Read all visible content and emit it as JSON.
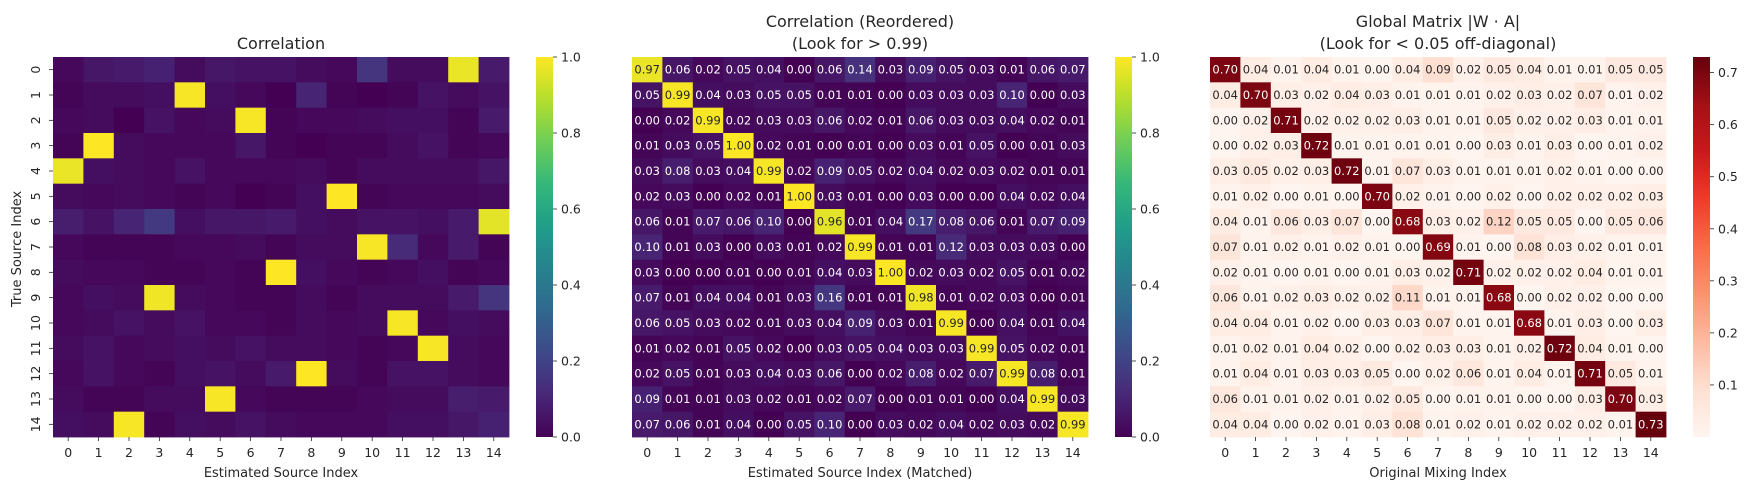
{
  "colors": {
    "viridis": [
      "#440154",
      "#482878",
      "#3e4989",
      "#31688e",
      "#26828e",
      "#1f9e89",
      "#35b779",
      "#6ece58",
      "#b5de2b",
      "#fde725"
    ],
    "reds": [
      "#fff5f0",
      "#fee0d2",
      "#fcbba1",
      "#fc9272",
      "#fb6a4a",
      "#ef3b2c",
      "#cb181d",
      "#a50f15",
      "#67000d"
    ]
  },
  "chart_data": [
    {
      "type": "heatmap",
      "title": "Correlation",
      "subtitle": "",
      "xlabel": "Estimated Source Index",
      "ylabel": "True Source Index",
      "x_ticks": [
        "0",
        "1",
        "2",
        "3",
        "4",
        "5",
        "6",
        "7",
        "8",
        "9",
        "10",
        "11",
        "12",
        "13",
        "14"
      ],
      "y_ticks": [
        "0",
        "1",
        "2",
        "3",
        "4",
        "5",
        "6",
        "7",
        "8",
        "9",
        "10",
        "11",
        "12",
        "13",
        "14"
      ],
      "colormap": "viridis",
      "vmin": 0,
      "vmax": 1,
      "colorbar_ticks": [
        "0.0",
        "0.2",
        "0.4",
        "0.6",
        "0.8",
        "1.0"
      ],
      "colorbar_tick_values": [
        0,
        0.2,
        0.4,
        0.6,
        0.8,
        1.0
      ],
      "show_values": false,
      "values": [
        [
          0.02,
          0.06,
          0.07,
          0.09,
          0.03,
          0.06,
          0.05,
          0.05,
          0.03,
          0.02,
          0.15,
          0.03,
          0.03,
          0.97,
          0.07
        ],
        [
          0.01,
          0.03,
          0.03,
          0.04,
          0.99,
          0.04,
          0.02,
          0.0,
          0.1,
          0.01,
          0.0,
          0.01,
          0.05,
          0.03,
          0.05
        ],
        [
          0.02,
          0.03,
          0.0,
          0.05,
          0.02,
          0.03,
          0.99,
          0.01,
          0.02,
          0.02,
          0.03,
          0.04,
          0.04,
          0.01,
          0.07
        ],
        [
          0.01,
          1.0,
          0.03,
          0.02,
          0.02,
          0.02,
          0.06,
          0.01,
          0.0,
          0.01,
          0.01,
          0.03,
          0.05,
          0.01,
          0.02
        ],
        [
          0.97,
          0.04,
          0.03,
          0.02,
          0.05,
          0.02,
          0.02,
          0.02,
          0.03,
          0.01,
          0.03,
          0.03,
          0.03,
          0.03,
          0.06
        ],
        [
          0.03,
          0.02,
          0.03,
          0.02,
          0.01,
          0.02,
          0.0,
          0.01,
          0.04,
          1.0,
          0.01,
          0.02,
          0.02,
          0.02,
          0.03
        ],
        [
          0.08,
          0.05,
          0.1,
          0.17,
          0.04,
          0.06,
          0.06,
          0.07,
          0.04,
          0.03,
          0.05,
          0.05,
          0.04,
          0.07,
          0.96
        ],
        [
          0.02,
          0.01,
          0.01,
          0.01,
          0.02,
          0.02,
          0.03,
          0.01,
          0.03,
          0.03,
          0.99,
          0.12,
          0.02,
          0.07,
          0.01
        ],
        [
          0.03,
          0.02,
          0.02,
          0.01,
          0.01,
          0.02,
          0.01,
          1.0,
          0.04,
          0.02,
          0.01,
          0.02,
          0.04,
          0.01,
          0.02
        ],
        [
          0.02,
          0.04,
          0.03,
          0.98,
          0.03,
          0.02,
          0.01,
          0.01,
          0.03,
          0.01,
          0.03,
          0.03,
          0.03,
          0.07,
          0.15
        ],
        [
          0.02,
          0.03,
          0.05,
          0.03,
          0.05,
          0.02,
          0.02,
          0.01,
          0.03,
          0.02,
          0.03,
          0.99,
          0.02,
          0.04,
          0.03
        ],
        [
          0.03,
          0.05,
          0.02,
          0.03,
          0.04,
          0.03,
          0.05,
          0.03,
          0.03,
          0.02,
          0.01,
          0.02,
          0.99,
          0.03,
          0.02
        ],
        [
          0.02,
          0.05,
          0.02,
          0.01,
          0.04,
          0.05,
          0.03,
          0.07,
          1.0,
          0.03,
          0.01,
          0.05,
          0.05,
          0.03,
          0.02
        ],
        [
          0.03,
          0.01,
          0.01,
          0.03,
          0.03,
          0.99,
          0.02,
          0.01,
          0.01,
          0.01,
          0.02,
          0.03,
          0.03,
          0.08,
          0.07
        ],
        [
          0.04,
          0.03,
          0.99,
          0.01,
          0.04,
          0.03,
          0.05,
          0.03,
          0.02,
          0.02,
          0.02,
          0.04,
          0.04,
          0.06,
          0.09
        ]
      ]
    },
    {
      "type": "heatmap",
      "title": "Correlation (Reordered)",
      "subtitle": "(Look for > 0.99)",
      "xlabel": "Estimated Source Index (Matched)",
      "ylabel": "",
      "x_ticks": [
        "0",
        "1",
        "2",
        "3",
        "4",
        "5",
        "6",
        "7",
        "8",
        "9",
        "10",
        "11",
        "12",
        "13",
        "14"
      ],
      "y_ticks": [],
      "colormap": "viridis",
      "vmin": 0,
      "vmax": 1,
      "colorbar_ticks": [
        "0.0",
        "0.2",
        "0.4",
        "0.6",
        "0.8",
        "1.0"
      ],
      "colorbar_tick_values": [
        0,
        0.2,
        0.4,
        0.6,
        0.8,
        1.0
      ],
      "show_values": true,
      "values": [
        [
          0.97,
          0.06,
          0.02,
          0.05,
          0.04,
          0.0,
          0.06,
          0.14,
          0.03,
          0.09,
          0.05,
          0.03,
          0.01,
          0.06,
          0.07
        ],
        [
          0.05,
          0.99,
          0.04,
          0.03,
          0.05,
          0.05,
          0.01,
          0.01,
          0.0,
          0.03,
          0.03,
          0.03,
          0.1,
          0.0,
          0.03
        ],
        [
          0.0,
          0.02,
          0.99,
          0.02,
          0.03,
          0.03,
          0.06,
          0.02,
          0.01,
          0.06,
          0.03,
          0.03,
          0.04,
          0.02,
          0.01
        ],
        [
          0.01,
          0.03,
          0.05,
          1.0,
          0.02,
          0.01,
          0.0,
          0.01,
          0.0,
          0.03,
          0.01,
          0.05,
          0.0,
          0.01,
          0.03
        ],
        [
          0.03,
          0.08,
          0.03,
          0.04,
          0.99,
          0.02,
          0.09,
          0.05,
          0.02,
          0.04,
          0.02,
          0.03,
          0.02,
          0.01,
          0.01
        ],
        [
          0.02,
          0.03,
          0.0,
          0.02,
          0.01,
          1.0,
          0.03,
          0.01,
          0.0,
          0.03,
          0.0,
          0.0,
          0.04,
          0.02,
          0.04
        ],
        [
          0.06,
          0.01,
          0.07,
          0.06,
          0.1,
          0.0,
          0.96,
          0.01,
          0.04,
          0.17,
          0.08,
          0.06,
          0.01,
          0.07,
          0.09
        ],
        [
          0.1,
          0.01,
          0.03,
          0.0,
          0.03,
          0.01,
          0.02,
          0.99,
          0.01,
          0.01,
          0.12,
          0.03,
          0.03,
          0.03,
          0.0
        ],
        [
          0.03,
          0.0,
          0.0,
          0.01,
          0.0,
          0.01,
          0.04,
          0.03,
          1.0,
          0.02,
          0.03,
          0.02,
          0.05,
          0.01,
          0.02
        ],
        [
          0.07,
          0.01,
          0.04,
          0.04,
          0.01,
          0.03,
          0.16,
          0.01,
          0.01,
          0.98,
          0.01,
          0.02,
          0.03,
          0.0,
          0.01
        ],
        [
          0.06,
          0.05,
          0.03,
          0.02,
          0.01,
          0.03,
          0.04,
          0.09,
          0.03,
          0.01,
          0.99,
          0.0,
          0.04,
          0.01,
          0.04
        ],
        [
          0.01,
          0.02,
          0.01,
          0.05,
          0.02,
          0.0,
          0.03,
          0.05,
          0.04,
          0.03,
          0.03,
          0.99,
          0.05,
          0.02,
          0.01
        ],
        [
          0.02,
          0.05,
          0.01,
          0.03,
          0.04,
          0.03,
          0.06,
          0.0,
          0.02,
          0.08,
          0.02,
          0.07,
          0.99,
          0.08,
          0.01
        ],
        [
          0.09,
          0.01,
          0.01,
          0.03,
          0.02,
          0.01,
          0.02,
          0.07,
          0.0,
          0.01,
          0.01,
          0.0,
          0.04,
          0.99,
          0.03
        ],
        [
          0.07,
          0.06,
          0.01,
          0.04,
          0.0,
          0.05,
          0.1,
          0.0,
          0.03,
          0.02,
          0.04,
          0.02,
          0.03,
          0.02,
          0.99
        ]
      ]
    },
    {
      "type": "heatmap",
      "title": "Global Matrix |W · A|",
      "subtitle": "(Look for < 0.05 off-diagonal)",
      "xlabel": "Original Mixing Index",
      "ylabel": "",
      "x_ticks": [
        "0",
        "1",
        "2",
        "3",
        "4",
        "5",
        "6",
        "7",
        "8",
        "9",
        "10",
        "11",
        "12",
        "13",
        "14"
      ],
      "y_ticks": [],
      "colormap": "reds",
      "vmin": 0,
      "vmax": 0.73,
      "colorbar_ticks": [
        "0.1",
        "0.2",
        "0.3",
        "0.4",
        "0.5",
        "0.6",
        "0.7"
      ],
      "colorbar_tick_values": [
        0.1,
        0.2,
        0.3,
        0.4,
        0.5,
        0.6,
        0.7
      ],
      "show_values": true,
      "values": [
        [
          0.7,
          0.04,
          0.01,
          0.04,
          0.01,
          0.0,
          0.04,
          0.09,
          0.02,
          0.05,
          0.04,
          0.01,
          0.01,
          0.05,
          0.05
        ],
        [
          0.04,
          0.7,
          0.03,
          0.02,
          0.04,
          0.03,
          0.01,
          0.01,
          0.01,
          0.02,
          0.03,
          0.02,
          0.07,
          0.01,
          0.02
        ],
        [
          0.0,
          0.02,
          0.71,
          0.02,
          0.02,
          0.02,
          0.03,
          0.01,
          0.01,
          0.05,
          0.02,
          0.02,
          0.03,
          0.01,
          0.01
        ],
        [
          0.0,
          0.02,
          0.03,
          0.72,
          0.01,
          0.01,
          0.01,
          0.01,
          0.0,
          0.03,
          0.01,
          0.03,
          0.0,
          0.01,
          0.02
        ],
        [
          0.03,
          0.05,
          0.02,
          0.03,
          0.72,
          0.01,
          0.07,
          0.03,
          0.01,
          0.01,
          0.01,
          0.02,
          0.01,
          0.0,
          0.0
        ],
        [
          0.01,
          0.02,
          0.0,
          0.01,
          0.0,
          0.7,
          0.02,
          0.01,
          0.0,
          0.02,
          0.0,
          0.02,
          0.02,
          0.02,
          0.03
        ],
        [
          0.04,
          0.01,
          0.06,
          0.03,
          0.07,
          0.0,
          0.68,
          0.03,
          0.02,
          0.12,
          0.05,
          0.05,
          0.0,
          0.05,
          0.06
        ],
        [
          0.07,
          0.01,
          0.02,
          0.01,
          0.02,
          0.01,
          0.0,
          0.69,
          0.01,
          0.0,
          0.08,
          0.03,
          0.02,
          0.01,
          0.01
        ],
        [
          0.02,
          0.01,
          0.0,
          0.01,
          0.0,
          0.01,
          0.03,
          0.02,
          0.71,
          0.02,
          0.02,
          0.02,
          0.04,
          0.01,
          0.01
        ],
        [
          0.06,
          0.01,
          0.02,
          0.03,
          0.02,
          0.02,
          0.11,
          0.01,
          0.01,
          0.68,
          0.0,
          0.02,
          0.02,
          0.0,
          0.0
        ],
        [
          0.04,
          0.04,
          0.01,
          0.02,
          0.0,
          0.03,
          0.03,
          0.07,
          0.01,
          0.01,
          0.68,
          0.01,
          0.03,
          0.0,
          0.03
        ],
        [
          0.01,
          0.02,
          0.01,
          0.04,
          0.02,
          0.0,
          0.02,
          0.03,
          0.03,
          0.01,
          0.02,
          0.72,
          0.04,
          0.01,
          0.0
        ],
        [
          0.01,
          0.04,
          0.01,
          0.03,
          0.03,
          0.05,
          0.0,
          0.02,
          0.06,
          0.01,
          0.04,
          0.01,
          0.71,
          0.05,
          0.01
        ],
        [
          0.06,
          0.01,
          0.01,
          0.02,
          0.01,
          0.02,
          0.05,
          0.0,
          0.01,
          0.01,
          0.0,
          0.0,
          0.03,
          0.7,
          0.03
        ],
        [
          0.04,
          0.04,
          0.0,
          0.02,
          0.01,
          0.03,
          0.08,
          0.01,
          0.02,
          0.01,
          0.02,
          0.02,
          0.02,
          0.01,
          0.73
        ]
      ]
    }
  ]
}
